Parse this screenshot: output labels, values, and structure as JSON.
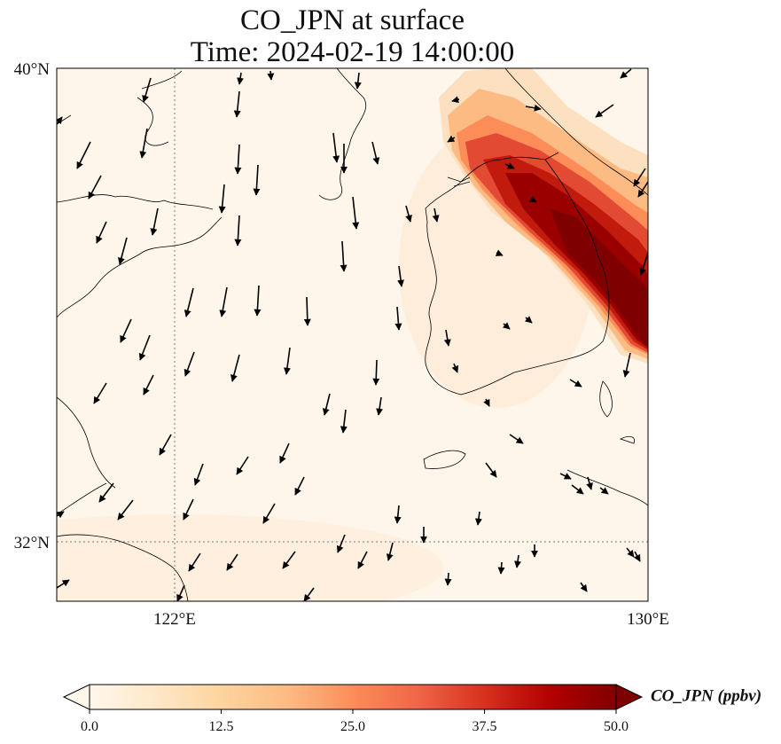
{
  "title": {
    "line1": "CO_JPN at surface",
    "line2": "Time: 2024-02-19 14:00:00"
  },
  "map": {
    "lat_labels": [
      "40°N",
      "32°N"
    ],
    "lon_labels": [
      "122°E",
      "130°E"
    ],
    "extent": {
      "lon_min": 120,
      "lon_max": 130,
      "lat_min": 31,
      "lat_max": 40
    },
    "gridlines": {
      "lons": [
        122
      ],
      "lats": [
        32
      ]
    }
  },
  "colorbar": {
    "label": "CO_JPN (ppbv)",
    "ticks": [
      "0.0",
      "12.5",
      "25.0",
      "37.5",
      "50.0"
    ],
    "range": [
      0,
      50
    ],
    "colormap": "OrRd",
    "extend": "both",
    "colors": [
      "#fff7ec",
      "#fee8c8",
      "#fdd49e",
      "#fdbb84",
      "#fc8d59",
      "#ef6548",
      "#d7301f",
      "#b30000",
      "#7f0000"
    ]
  }
}
